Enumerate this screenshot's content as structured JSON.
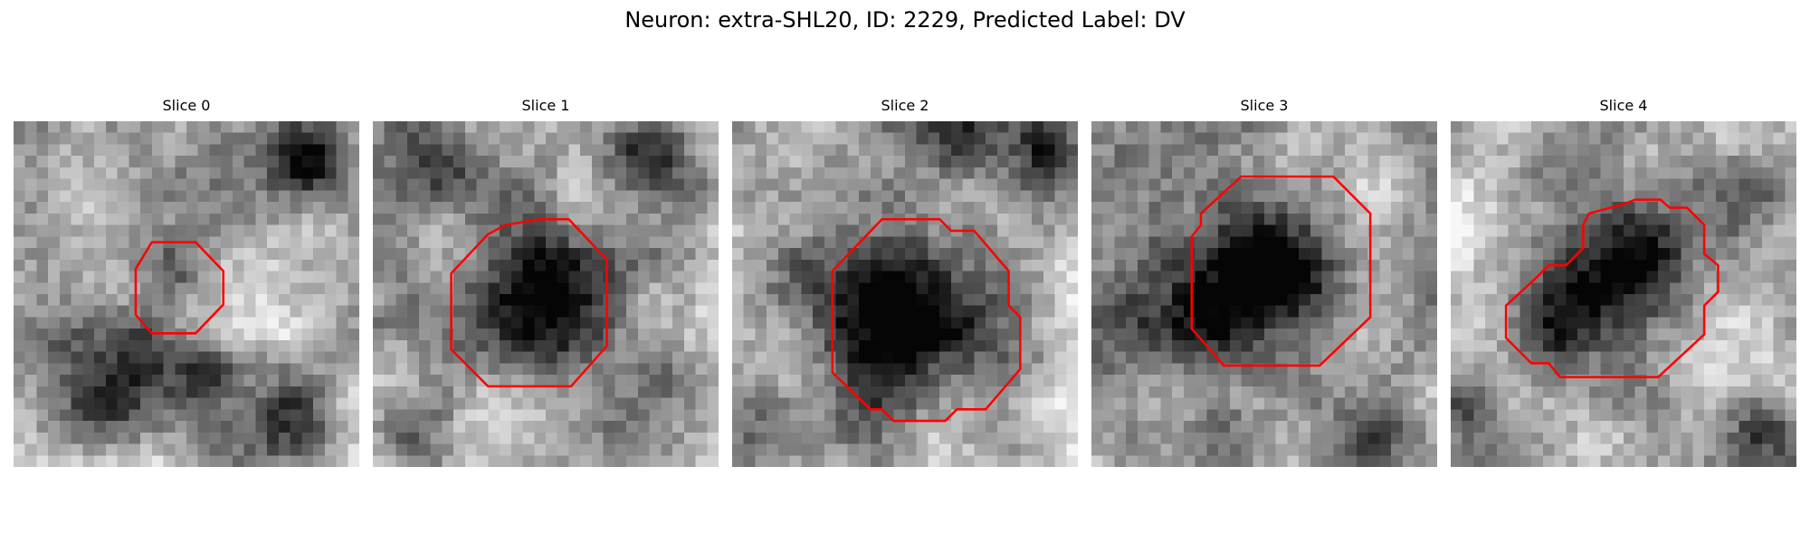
{
  "figure": {
    "title": "Neuron: extra-SHL20, ID: 2229, Predicted Label: DV"
  },
  "outline_color": "#ff0000",
  "panels": [
    {
      "title": "Slice 0"
    },
    {
      "title": "Slice 1"
    },
    {
      "title": "Slice 2"
    },
    {
      "title": "Slice 3"
    },
    {
      "title": "Slice 4"
    }
  ]
}
